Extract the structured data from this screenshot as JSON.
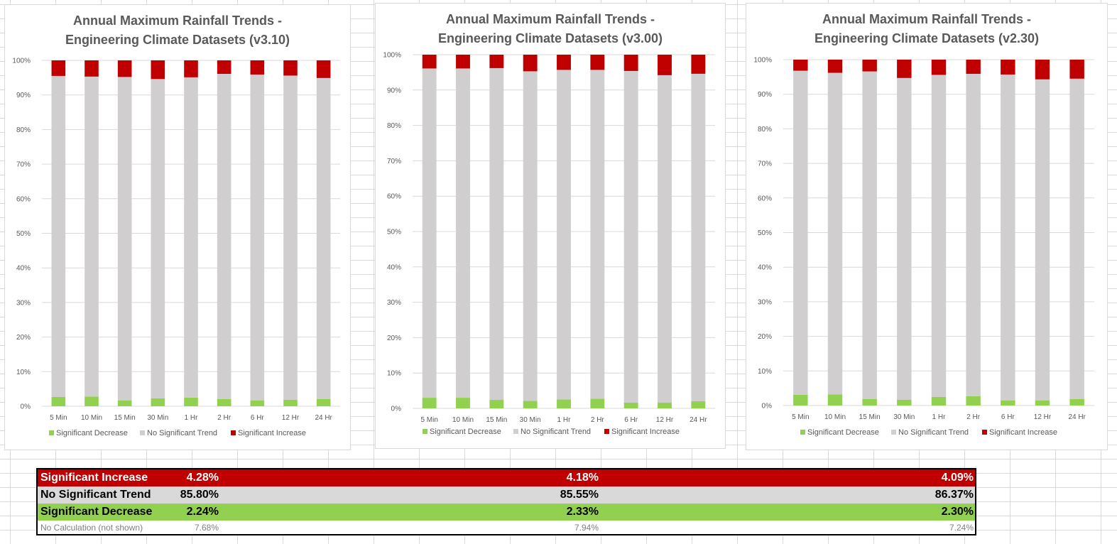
{
  "colors": {
    "increase": "#c00000",
    "no_trend": "#d0cece",
    "decrease": "#92d050",
    "gridline": "#d9d9d9",
    "axis_text": "#595959"
  },
  "chart_data": [
    {
      "type": "bar",
      "stacked": "percent",
      "title": "Annual Maximum Rainfall Trends -",
      "title_line2": "Engineering Climate Datasets (v3.10)",
      "categories": [
        "5 Min",
        "10 Min",
        "15 Min",
        "30 Min",
        "1 Hr",
        "2 Hr",
        "6 Hr",
        "12 Hr",
        "24 Hr"
      ],
      "series": [
        {
          "name": "Significant Decrease",
          "values": [
            2.7,
            2.8,
            1.7,
            2.3,
            2.5,
            2.1,
            1.7,
            1.9,
            2.1
          ]
        },
        {
          "name": "No Significant Trend",
          "values": [
            92.8,
            92.5,
            93.5,
            92.3,
            92.6,
            94.0,
            94.2,
            93.7,
            92.8
          ]
        },
        {
          "name": "Significant Increase",
          "values": [
            4.5,
            4.7,
            4.8,
            5.4,
            4.9,
            3.9,
            4.1,
            4.4,
            5.1
          ]
        }
      ],
      "yticks": [
        "0%",
        "10%",
        "20%",
        "30%",
        "40%",
        "50%",
        "60%",
        "70%",
        "80%",
        "90%",
        "100%"
      ],
      "ylim": [
        0,
        100
      ],
      "legend": "bottom"
    },
    {
      "type": "bar",
      "stacked": "percent",
      "title": "Annual Maximum Rainfall Trends -",
      "title_line2": "Engineering Climate Datasets (v3.00)",
      "categories": [
        "5 Min",
        "10 Min",
        "15 Min",
        "30 Min",
        "1 Hr",
        "2 Hr",
        "6 Hr",
        "12 Hr",
        "24 Hr"
      ],
      "series": [
        {
          "name": "Significant Decrease",
          "values": [
            3.0,
            3.0,
            2.4,
            2.1,
            2.5,
            2.7,
            1.6,
            1.6,
            2.0
          ]
        },
        {
          "name": "No Significant Trend",
          "values": [
            93.1,
            93.1,
            93.8,
            93.2,
            93.2,
            93.0,
            93.8,
            92.6,
            92.6
          ]
        },
        {
          "name": "Significant Increase",
          "values": [
            3.9,
            3.9,
            3.8,
            4.7,
            4.3,
            4.3,
            4.6,
            5.8,
            5.4
          ]
        }
      ],
      "yticks": [
        "0%",
        "10%",
        "20%",
        "30%",
        "40%",
        "50%",
        "60%",
        "70%",
        "80%",
        "90%",
        "100%"
      ],
      "ylim": [
        0,
        100
      ],
      "legend": "bottom"
    },
    {
      "type": "bar",
      "stacked": "percent",
      "title": "Annual Maximum Rainfall Trends -",
      "title_line2": "Engineering Climate Datasets (v2.30)",
      "categories": [
        "5 Min",
        "10 Min",
        "15 Min",
        "30 Min",
        "1 Hr",
        "2 Hr",
        "6 Hr",
        "12 Hr",
        "24 Hr"
      ],
      "series": [
        {
          "name": "Significant Decrease",
          "values": [
            3.1,
            3.2,
            1.9,
            1.7,
            2.5,
            2.7,
            1.5,
            1.5,
            1.9
          ]
        },
        {
          "name": "No Significant Trend",
          "values": [
            93.7,
            93.0,
            94.7,
            93.0,
            93.1,
            93.2,
            94.2,
            92.8,
            92.6
          ]
        },
        {
          "name": "Significant Increase",
          "values": [
            3.2,
            3.8,
            3.4,
            5.3,
            4.4,
            4.1,
            4.3,
            5.7,
            5.5
          ]
        }
      ],
      "yticks": [
        "0%",
        "10%",
        "20%",
        "30%",
        "40%",
        "50%",
        "60%",
        "70%",
        "80%",
        "90%",
        "100%"
      ],
      "ylim": [
        0,
        100
      ],
      "legend": "bottom"
    }
  ],
  "summary": {
    "increase": {
      "label": "Significant Increase",
      "values": [
        "4.28%",
        "4.18%",
        "4.09%"
      ]
    },
    "no_trend": {
      "label": "No Significant Trend",
      "values": [
        "85.80%",
        "85.55%",
        "86.37%"
      ]
    },
    "decrease": {
      "label": "Significant Decrease",
      "values": [
        "2.24%",
        "2.33%",
        "2.30%"
      ]
    },
    "no_calc": {
      "label": "No Calculation (not shown)",
      "values": [
        "7.68%",
        "7.94%",
        "7.24%"
      ]
    }
  }
}
